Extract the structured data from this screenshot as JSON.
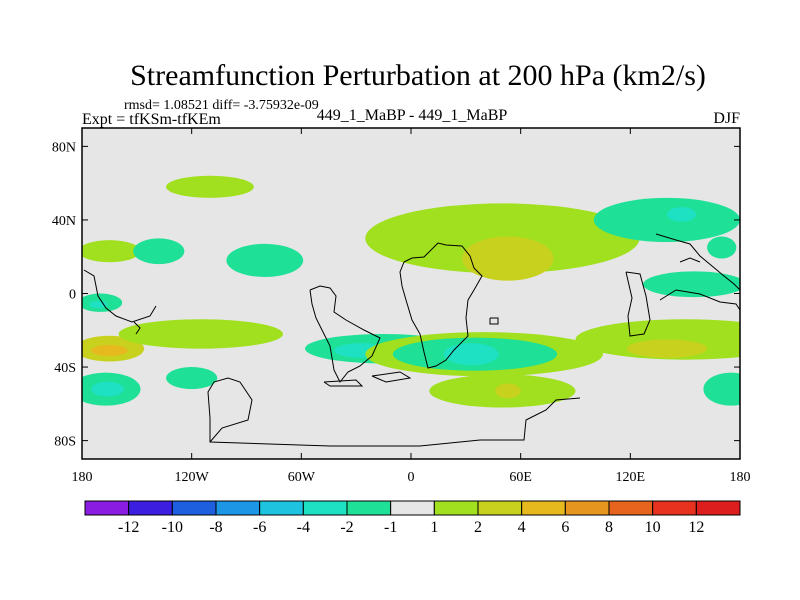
{
  "chart_data": {
    "type": "heatmap",
    "title": "Streamfunction Perturbation at 200 hPa (km2/s)",
    "stats": "rmsd= 1.08521 diff= -3.75932e-09",
    "experiment": "Expt = tfKSm-tfKEm",
    "center_label": "449_1_MaBP - 449_1_MaBP",
    "season": "DJF",
    "xlim": [
      180,
      540
    ],
    "ylim": [
      -90,
      90
    ],
    "x_ticks": [
      {
        "value": 180,
        "label": "180"
      },
      {
        "value": 240,
        "label": "120W"
      },
      {
        "value": 300,
        "label": "60W"
      },
      {
        "value": 360,
        "label": "0"
      },
      {
        "value": 420,
        "label": "60E"
      },
      {
        "value": 480,
        "label": "120E"
      },
      {
        "value": 540,
        "label": "180"
      }
    ],
    "y_ticks": [
      {
        "value": 80,
        "label": "80N"
      },
      {
        "value": 40,
        "label": "40N"
      },
      {
        "value": 0,
        "label": "0"
      },
      {
        "value": -40,
        "label": "40S"
      },
      {
        "value": -80,
        "label": "80S"
      }
    ],
    "colorbar": {
      "colors": [
        "#8a1be0",
        "#3c1ee0",
        "#1e5fe0",
        "#1e96e6",
        "#1ec3e0",
        "#1ee0c3",
        "#1ee096",
        "#e6e6e6",
        "#a0e01e",
        "#c8d21e",
        "#e6b91e",
        "#e6961e",
        "#e6641e",
        "#e6321e",
        "#dc1e1e"
      ],
      "labels": [
        "-12",
        "-10",
        "-8",
        "-6",
        "-4",
        "-2",
        "-1",
        "1",
        "2",
        "4",
        "6",
        "8",
        "10",
        "12"
      ]
    },
    "anomalies": [
      {
        "lon": 193,
        "lat": -52,
        "rx": 19,
        "ry": 9,
        "level": 6
      },
      {
        "lon": 194,
        "lat": -52,
        "rx": 9,
        "ry": 4,
        "level": 5
      },
      {
        "lon": 195,
        "lat": -30,
        "rx": 19,
        "ry": 7,
        "level": 9
      },
      {
        "lon": 195,
        "lat": -31,
        "rx": 10,
        "ry": 3,
        "level": 10
      },
      {
        "lon": 195,
        "lat": 23,
        "rx": 17,
        "ry": 6,
        "level": 8
      },
      {
        "lon": 190,
        "lat": -5,
        "rx": 12,
        "ry": 5,
        "level": 6
      },
      {
        "lon": 189,
        "lat": -6,
        "rx": 5,
        "ry": 2,
        "level": 5
      },
      {
        "lon": 250,
        "lat": 58,
        "rx": 24,
        "ry": 6,
        "level": 8
      },
      {
        "lon": 245,
        "lat": -22,
        "rx": 45,
        "ry": 8,
        "level": 8
      },
      {
        "lon": 240,
        "lat": -46,
        "rx": 14,
        "ry": 6,
        "level": 6
      },
      {
        "lon": 280,
        "lat": 18,
        "rx": 21,
        "ry": 9,
        "level": 6
      },
      {
        "lon": 222,
        "lat": 23,
        "rx": 14,
        "ry": 7,
        "level": 6
      },
      {
        "lon": 345,
        "lat": -30,
        "rx": 43,
        "ry": 8,
        "level": 6
      },
      {
        "lon": 333,
        "lat": -31,
        "rx": 15,
        "ry": 4,
        "level": 5
      },
      {
        "lon": 400,
        "lat": -33,
        "rx": 65,
        "ry": 12,
        "level": 8
      },
      {
        "lon": 395,
        "lat": -33,
        "rx": 45,
        "ry": 9,
        "level": 6
      },
      {
        "lon": 393,
        "lat": -33,
        "rx": 15,
        "ry": 6,
        "level": 5
      },
      {
        "lon": 410,
        "lat": -53,
        "rx": 40,
        "ry": 9,
        "level": 8
      },
      {
        "lon": 413,
        "lat": -53,
        "rx": 7,
        "ry": 4,
        "level": 9
      },
      {
        "lon": 410,
        "lat": 30,
        "rx": 75,
        "ry": 19,
        "level": 8
      },
      {
        "lon": 413,
        "lat": 19,
        "rx": 25,
        "ry": 12,
        "level": 9
      },
      {
        "lon": 500,
        "lat": 40,
        "rx": 40,
        "ry": 12,
        "level": 6
      },
      {
        "lon": 508,
        "lat": 43,
        "rx": 8,
        "ry": 4,
        "level": 5
      },
      {
        "lon": 515,
        "lat": 5,
        "rx": 28,
        "ry": 7,
        "level": 6
      },
      {
        "lon": 530,
        "lat": 25,
        "rx": 8,
        "ry": 6,
        "level": 6
      },
      {
        "lon": 510,
        "lat": -25,
        "rx": 60,
        "ry": 11,
        "level": 8
      },
      {
        "lon": 500,
        "lat": -30,
        "rx": 22,
        "ry": 5,
        "level": 9
      },
      {
        "lon": 535,
        "lat": -52,
        "rx": 15,
        "ry": 9,
        "level": 6
      }
    ]
  }
}
